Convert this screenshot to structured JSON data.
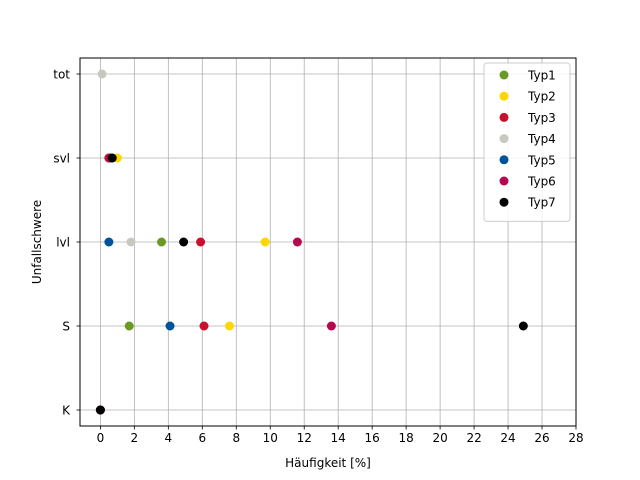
{
  "chart_data": {
    "type": "scatter",
    "title": "",
    "xlabel": "Häufigkeit [%]",
    "ylabel": "Unfallschwere",
    "xlim": [
      -1.2,
      28
    ],
    "x_ticks": [
      0,
      2,
      4,
      6,
      8,
      10,
      12,
      14,
      16,
      18,
      20,
      22,
      24,
      26,
      28
    ],
    "y_categories": [
      "K",
      "S",
      "lvl",
      "svl",
      "tot"
    ],
    "grid": true,
    "legend_position": "top-right",
    "series": [
      {
        "name": "Typ1",
        "color": "#6a9a23",
        "points": [
          {
            "x": 0,
            "y": "K"
          },
          {
            "x": 1.7,
            "y": "S"
          },
          {
            "x": 3.6,
            "y": "lvl"
          },
          {
            "x": 0.5,
            "y": "svl"
          }
        ]
      },
      {
        "name": "Typ2",
        "color": "#ffd700",
        "points": [
          {
            "x": 0,
            "y": "K"
          },
          {
            "x": 7.6,
            "y": "S"
          },
          {
            "x": 9.7,
            "y": "lvl"
          },
          {
            "x": 1.0,
            "y": "svl"
          }
        ]
      },
      {
        "name": "Typ3",
        "color": "#c8102e",
        "points": [
          {
            "x": 0,
            "y": "K"
          },
          {
            "x": 6.1,
            "y": "S"
          },
          {
            "x": 5.9,
            "y": "lvl"
          },
          {
            "x": 0.5,
            "y": "svl"
          }
        ]
      },
      {
        "name": "Typ4",
        "color": "#c8c8c0",
        "points": [
          {
            "x": 0,
            "y": "K"
          },
          {
            "x": 1.8,
            "y": "lvl"
          },
          {
            "x": 0.1,
            "y": "tot"
          }
        ]
      },
      {
        "name": "Typ5",
        "color": "#00539b",
        "points": [
          {
            "x": 0,
            "y": "K"
          },
          {
            "x": 4.1,
            "y": "S"
          },
          {
            "x": 0.5,
            "y": "lvl"
          },
          {
            "x": 0.6,
            "y": "svl"
          }
        ]
      },
      {
        "name": "Typ6",
        "color": "#b5084e",
        "points": [
          {
            "x": 0,
            "y": "K"
          },
          {
            "x": 13.6,
            "y": "S"
          },
          {
            "x": 11.6,
            "y": "lvl"
          },
          {
            "x": 0.6,
            "y": "svl"
          }
        ]
      },
      {
        "name": "Typ7",
        "color": "#000000",
        "points": [
          {
            "x": 0,
            "y": "K"
          },
          {
            "x": 24.9,
            "y": "S"
          },
          {
            "x": 4.9,
            "y": "lvl"
          },
          {
            "x": 0.7,
            "y": "svl"
          }
        ]
      }
    ]
  }
}
